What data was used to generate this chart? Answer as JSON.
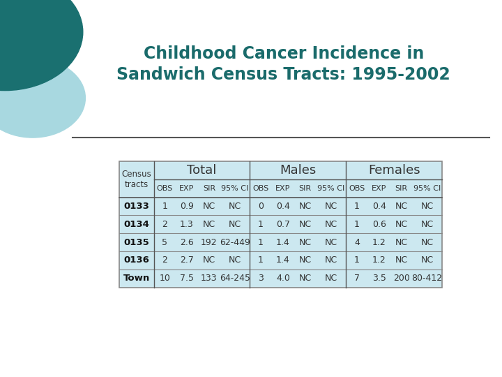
{
  "title_line1": "Childhood Cancer Incidence in",
  "title_line2": "Sandwich Census Tracts: 1995-2002",
  "title_color": "#1a6b6b",
  "bg_color": "#ffffff",
  "table_bg": "#cce8f0",
  "text_color": "#333333",
  "header_group": [
    "Census\ntracts",
    "Total",
    "Males",
    "Females"
  ],
  "sub_headers": [
    "OBS",
    "EXP",
    "SIR",
    "95% CI"
  ],
  "row_labels": [
    "0133",
    "0134",
    "0135",
    "0136",
    "Town"
  ],
  "rows": [
    [
      "1",
      "0.9",
      "NC",
      "NC",
      "0",
      "0.4",
      "NC",
      "NC",
      "1",
      "0.4",
      "NC",
      "NC"
    ],
    [
      "2",
      "1.3",
      "NC",
      "NC",
      "1",
      "0.7",
      "NC",
      "NC",
      "1",
      "0.6",
      "NC",
      "NC"
    ],
    [
      "5",
      "2.6",
      "192",
      "62-449",
      "1",
      "1.4",
      "NC",
      "NC",
      "4",
      "1.2",
      "NC",
      "NC"
    ],
    [
      "2",
      "2.7",
      "NC",
      "NC",
      "1",
      "1.4",
      "NC",
      "NC",
      "1",
      "1.2",
      "NC",
      "NC"
    ],
    [
      "10",
      "7.5",
      "133",
      "64-245",
      "3",
      "4.0",
      "NC",
      "NC",
      "7",
      "3.5",
      "200",
      "80-412"
    ]
  ],
  "circle_color1": "#1a7070",
  "circle_color2": "#a8d8e0",
  "line_color": "#555555",
  "border_color": "#888888",
  "divider_color": "#555555",
  "row_line_color": "#888888"
}
